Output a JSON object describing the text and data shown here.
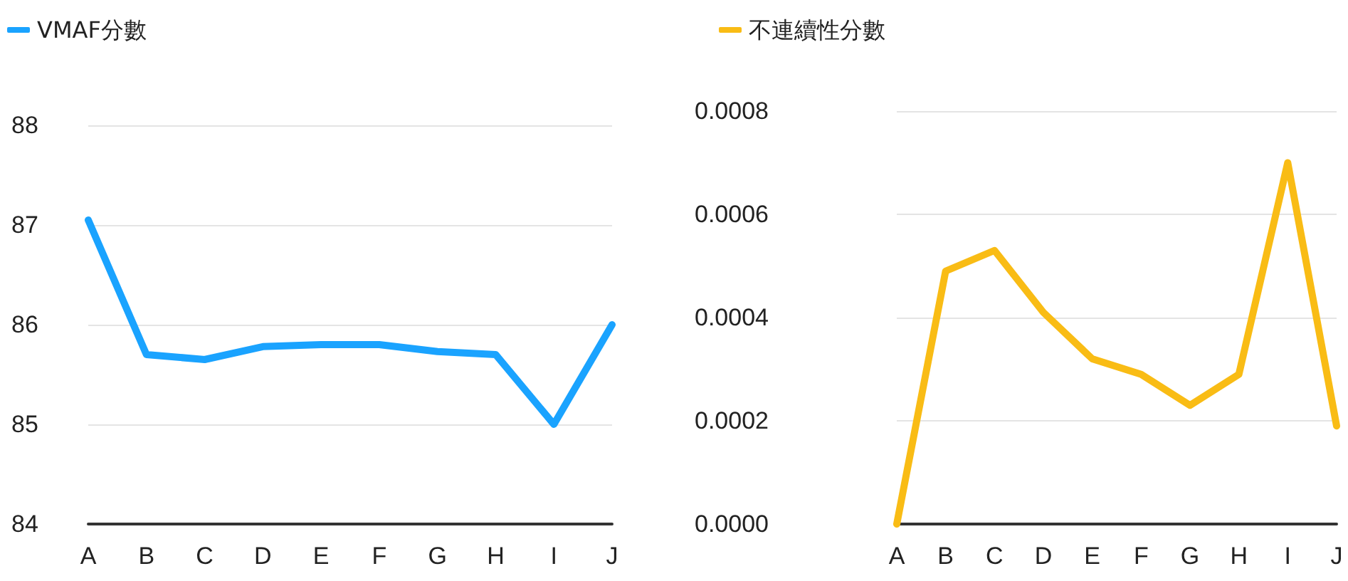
{
  "chart_data": [
    {
      "type": "line",
      "categories": [
        "A",
        "B",
        "C",
        "D",
        "E",
        "F",
        "G",
        "H",
        "I",
        "J"
      ],
      "series": [
        {
          "name": "VMAF分數",
          "color": "#1aa3ff",
          "values": [
            87.05,
            85.7,
            85.65,
            85.78,
            85.8,
            85.8,
            85.73,
            85.7,
            85.0,
            86.0
          ]
        }
      ],
      "ylim": [
        84,
        88
      ],
      "yticks": [
        84,
        85,
        86,
        87,
        88
      ],
      "grid": "y",
      "legend": "top left",
      "marker": "none",
      "line_style": "solid"
    },
    {
      "type": "line",
      "categories": [
        "A",
        "B",
        "C",
        "D",
        "E",
        "F",
        "G",
        "H",
        "I",
        "J"
      ],
      "series": [
        {
          "name": "不連續性分數",
          "color": "#f9bc15",
          "values": [
            0,
            0.00049,
            0.00053,
            0.00041,
            0.00032,
            0.00029,
            0.00023,
            0.00029,
            0.0007,
            0.00019
          ]
        }
      ],
      "ylim": [
        0,
        0.0008
      ],
      "yticks": [
        {
          "value": 0,
          "label": "0.0000"
        },
        0.0002,
        0.0004,
        0.0006,
        0.0008
      ],
      "grid": "y",
      "legend": "top left",
      "marker": "none",
      "line_style": "solid"
    }
  ]
}
